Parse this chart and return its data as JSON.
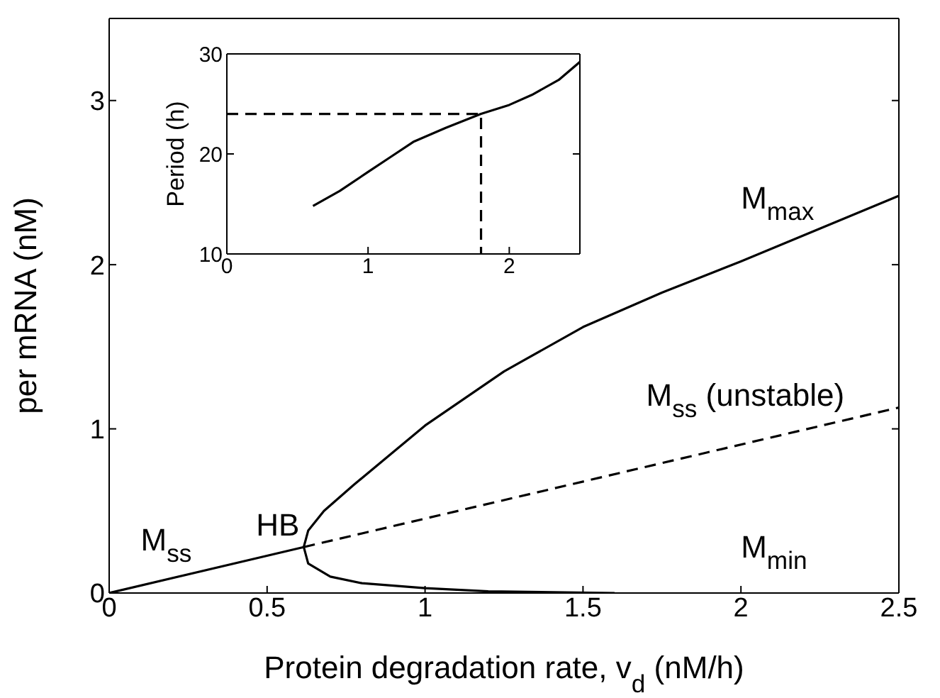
{
  "chart_data": [
    {
      "type": "line",
      "xlabel": "Protein degradation rate, v$_{d}$ (nM/h)",
      "ylabel": "per mRNA (nM)",
      "xlim": [
        0,
        2.5
      ],
      "xticks": [
        0,
        0.5,
        1,
        1.5,
        2,
        2.5
      ],
      "ylim": [
        0,
        3.5
      ],
      "yticks": [
        0,
        1,
        2,
        3
      ],
      "series": [
        {
          "color": "#000000",
          "line_style": "solid",
          "x": [
            0,
            0.616
          ],
          "values": [
            0,
            0.28
          ]
        },
        {
          "color": "#000000",
          "line_style": "dashed",
          "x": [
            0.616,
            2.5
          ],
          "values": [
            0.28,
            1.13
          ]
        },
        {
          "color": "#000000",
          "line_style": "solid",
          "x": [
            0.616,
            0.63,
            0.68,
            0.775,
            0.9,
            1.0,
            1.25,
            1.5,
            1.75,
            2.0,
            2.25,
            2.5
          ],
          "values": [
            0.28,
            0.38,
            0.5,
            0.66,
            0.86,
            1.02,
            1.35,
            1.62,
            1.83,
            2.02,
            2.22,
            2.42
          ]
        },
        {
          "color": "#000000",
          "line_style": "solid",
          "x": [
            0.616,
            0.63,
            0.7,
            0.8,
            1.0,
            1.2,
            1.6
          ],
          "values": [
            0.28,
            0.18,
            0.1,
            0.06,
            0.03,
            0.01,
            0.0
          ]
        }
      ],
      "annotations": [
        "M$_{max}$",
        "M$_{ss}$ (unstable)",
        "M$_{min}$",
        "M$_{ss}$",
        {
          "text": "HB",
          "x": 0.62,
          "y": 0.28
        }
      ]
    },
    {
      "type": "line",
      "ylabel": "Period (h)",
      "xlim": [
        0,
        2.5
      ],
      "xticks": [
        0,
        1,
        2
      ],
      "ylim": [
        10,
        30
      ],
      "yticks": [
        10,
        20,
        30
      ],
      "series": [
        {
          "color": "#000000",
          "line_style": "solid",
          "x": [
            0.61,
            0.8,
            1.0,
            1.16,
            1.32,
            1.55,
            1.8,
            2.0,
            2.16,
            2.35,
            2.5
          ],
          "values": [
            14.8,
            16.3,
            18.2,
            19.7,
            21.2,
            22.6,
            24.0,
            24.9,
            25.9,
            27.4,
            29.2
          ]
        },
        {
          "color": "#000000",
          "line_style": "dashed",
          "x": [
            0,
            1.8,
            1.8
          ],
          "values": [
            24,
            24,
            10
          ]
        }
      ]
    }
  ]
}
